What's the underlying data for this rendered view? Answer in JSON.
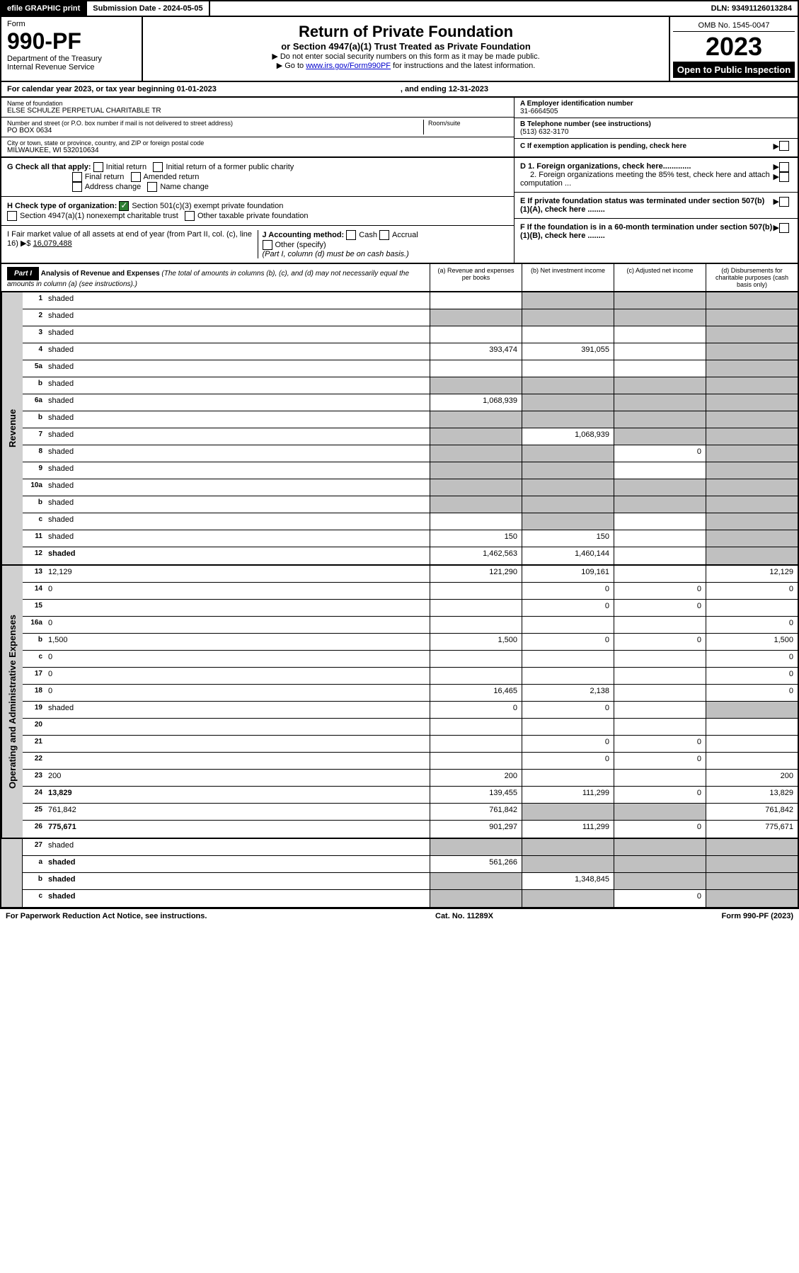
{
  "header": {
    "efile": "efile GRAPHIC print",
    "submission_label": "Submission Date - 2024-05-05",
    "dln": "DLN: 93491126013284"
  },
  "form": {
    "form_label": "Form",
    "form_num": "990-PF",
    "dept": "Department of the Treasury",
    "irs": "Internal Revenue Service",
    "title": "Return of Private Foundation",
    "subtitle": "or Section 4947(a)(1) Trust Treated as Private Foundation",
    "note1": "▶ Do not enter social security numbers on this form as it may be made public.",
    "note2_pre": "▶ Go to ",
    "note2_link": "www.irs.gov/Form990PF",
    "note2_post": " for instructions and the latest information.",
    "omb": "OMB No. 1545-0047",
    "year": "2023",
    "inspection": "Open to Public Inspection"
  },
  "cal_year": {
    "text1": "For calendar year 2023, or tax year beginning 01-01-2023",
    "text2": ", and ending 12-31-2023"
  },
  "info": {
    "name_label": "Name of foundation",
    "name": "ELSE SCHULZE PERPETUAL CHARITABLE TR",
    "addr_label": "Number and street (or P.O. box number if mail is not delivered to street address)",
    "addr": "PO BOX 0634",
    "room_label": "Room/suite",
    "city_label": "City or town, state or province, country, and ZIP or foreign postal code",
    "city": "MILWAUKEE, WI  532010634",
    "ein_label": "A Employer identification number",
    "ein": "31-6664505",
    "phone_label": "B Telephone number (see instructions)",
    "phone": "(513) 632-3170",
    "c_label": "C If exemption application is pending, check here"
  },
  "checks": {
    "g_label": "G Check all that apply:",
    "g1": "Initial return",
    "g2": "Initial return of a former public charity",
    "g3": "Final return",
    "g4": "Amended return",
    "g5": "Address change",
    "g6": "Name change",
    "h_label": "H Check type of organization:",
    "h1": "Section 501(c)(3) exempt private foundation",
    "h2": "Section 4947(a)(1) nonexempt charitable trust",
    "h3": "Other taxable private foundation",
    "i_label": "I Fair market value of all assets at end of year (from Part II, col. (c), line 16) ▶$ ",
    "i_val": "16,079,488",
    "j_label": "J Accounting method:",
    "j1": "Cash",
    "j2": "Accrual",
    "j3": "Other (specify)",
    "j_note": "(Part I, column (d) must be on cash basis.)",
    "d1": "D 1. Foreign organizations, check here.............",
    "d2": "2. Foreign organizations meeting the 85% test, check here and attach computation ...",
    "e": "E If private foundation status was terminated under section 507(b)(1)(A), check here ........",
    "f": "F If the foundation is in a 60-month termination under section 507(b)(1)(B), check here ........"
  },
  "part1": {
    "label": "Part I",
    "title": "Analysis of Revenue and Expenses",
    "note": " (The total of amounts in columns (b), (c), and (d) may not necessarily equal the amounts in column (a) (see instructions).)",
    "col_a": "(a) Revenue and expenses per books",
    "col_b": "(b) Net investment income",
    "col_c": "(c) Adjusted net income",
    "col_d": "(d) Disbursements for charitable purposes (cash basis only)"
  },
  "sections": {
    "revenue": "Revenue",
    "expenses": "Operating and Administrative Expenses"
  },
  "rows": [
    {
      "n": "1",
      "d": "shaded",
      "a": "",
      "b": "shaded",
      "c": "shaded"
    },
    {
      "n": "2",
      "d": "shaded",
      "a": "shaded",
      "b": "shaded",
      "c": "shaded"
    },
    {
      "n": "3",
      "d": "shaded",
      "a": "",
      "b": "",
      "c": ""
    },
    {
      "n": "4",
      "d": "shaded",
      "a": "393,474",
      "b": "391,055",
      "c": ""
    },
    {
      "n": "5a",
      "d": "shaded",
      "a": "",
      "b": "",
      "c": ""
    },
    {
      "n": "b",
      "d": "shaded",
      "a": "shaded",
      "b": "shaded",
      "c": "shaded"
    },
    {
      "n": "6a",
      "d": "shaded",
      "a": "1,068,939",
      "b": "shaded",
      "c": "shaded"
    },
    {
      "n": "b",
      "d": "shaded",
      "a": "shaded",
      "b": "shaded",
      "c": "shaded"
    },
    {
      "n": "7",
      "d": "shaded",
      "a": "shaded",
      "b": "1,068,939",
      "c": "shaded"
    },
    {
      "n": "8",
      "d": "shaded",
      "a": "shaded",
      "b": "shaded",
      "c": "0"
    },
    {
      "n": "9",
      "d": "shaded",
      "a": "shaded",
      "b": "shaded",
      "c": ""
    },
    {
      "n": "10a",
      "d": "shaded",
      "a": "shaded",
      "b": "shaded",
      "c": "shaded"
    },
    {
      "n": "b",
      "d": "shaded",
      "a": "shaded",
      "b": "shaded",
      "c": "shaded"
    },
    {
      "n": "c",
      "d": "shaded",
      "a": "",
      "b": "shaded",
      "c": ""
    },
    {
      "n": "11",
      "d": "shaded",
      "a": "150",
      "b": "150",
      "c": ""
    },
    {
      "n": "12",
      "d": "shaded",
      "bold": true,
      "a": "1,462,563",
      "b": "1,460,144",
      "c": ""
    }
  ],
  "exp_rows": [
    {
      "n": "13",
      "d": "12,129",
      "a": "121,290",
      "b": "109,161",
      "c": ""
    },
    {
      "n": "14",
      "d": "0",
      "a": "",
      "b": "0",
      "c": "0"
    },
    {
      "n": "15",
      "d": "",
      "a": "",
      "b": "0",
      "c": "0"
    },
    {
      "n": "16a",
      "d": "0",
      "a": "",
      "b": "",
      "c": ""
    },
    {
      "n": "b",
      "d": "1,500",
      "a": "1,500",
      "b": "0",
      "c": "0"
    },
    {
      "n": "c",
      "d": "0",
      "a": "",
      "b": "",
      "c": ""
    },
    {
      "n": "17",
      "d": "0",
      "a": "",
      "b": "",
      "c": ""
    },
    {
      "n": "18",
      "d": "0",
      "a": "16,465",
      "b": "2,138",
      "c": ""
    },
    {
      "n": "19",
      "d": "shaded",
      "a": "0",
      "b": "0",
      "c": ""
    },
    {
      "n": "20",
      "d": "",
      "a": "",
      "b": "",
      "c": ""
    },
    {
      "n": "21",
      "d": "",
      "a": "",
      "b": "0",
      "c": "0"
    },
    {
      "n": "22",
      "d": "",
      "a": "",
      "b": "0",
      "c": "0"
    },
    {
      "n": "23",
      "d": "200",
      "a": "200",
      "b": "",
      "c": ""
    },
    {
      "n": "24",
      "d": "13,829",
      "bold": true,
      "a": "139,455",
      "b": "111,299",
      "c": "0"
    },
    {
      "n": "25",
      "d": "761,842",
      "a": "761,842",
      "b": "shaded",
      "c": "shaded"
    },
    {
      "n": "26",
      "d": "775,671",
      "bold": true,
      "a": "901,297",
      "b": "111,299",
      "c": "0"
    }
  ],
  "final_rows": [
    {
      "n": "27",
      "d": "shaded",
      "a": "shaded",
      "b": "shaded",
      "c": "shaded"
    },
    {
      "n": "a",
      "d": "shaded",
      "bold": true,
      "a": "561,266",
      "b": "shaded",
      "c": "shaded"
    },
    {
      "n": "b",
      "d": "shaded",
      "bold": true,
      "a": "shaded",
      "b": "1,348,845",
      "c": "shaded"
    },
    {
      "n": "c",
      "d": "shaded",
      "bold": true,
      "a": "shaded",
      "b": "shaded",
      "c": "0"
    }
  ],
  "footer": {
    "left": "For Paperwork Reduction Act Notice, see instructions.",
    "mid": "Cat. No. 11289X",
    "right": "Form 990-PF (2023)"
  }
}
